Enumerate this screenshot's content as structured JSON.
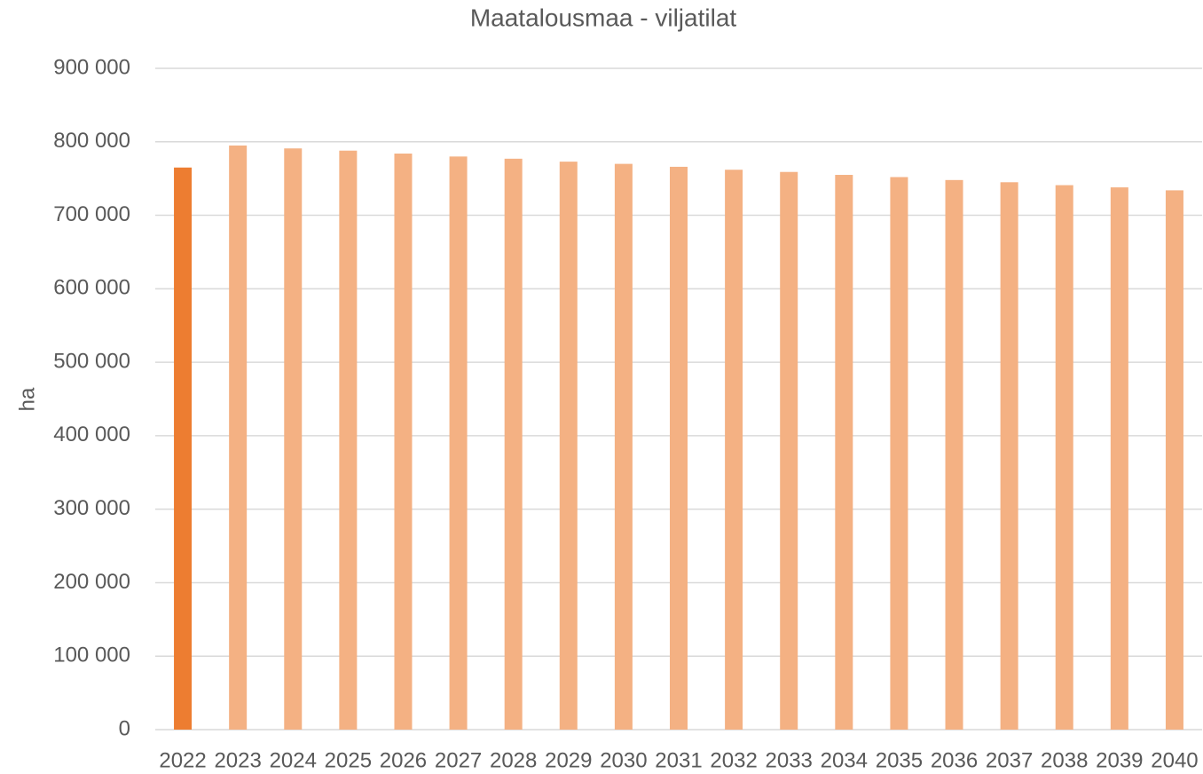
{
  "chart_data": {
    "type": "bar",
    "title": "Maatalousmaa - viljatilat",
    "y_label": "ha",
    "categories": [
      "2022",
      "2023",
      "2024",
      "2025",
      "2026",
      "2027",
      "2028",
      "2029",
      "2030",
      "2031",
      "2032",
      "2033",
      "2034",
      "2035",
      "2036",
      "2037",
      "2038",
      "2039",
      "2040"
    ],
    "values": [
      765000,
      795000,
      791000,
      788000,
      784000,
      780000,
      777000,
      773000,
      770000,
      766000,
      762000,
      759000,
      755000,
      752000,
      748000,
      745000,
      741000,
      738000,
      734000
    ],
    "colors": [
      "#ed7d31",
      "#f4b183",
      "#f4b183",
      "#f4b183",
      "#f4b183",
      "#f4b183",
      "#f4b183",
      "#f4b183",
      "#f4b183",
      "#f4b183",
      "#f4b183",
      "#f4b183",
      "#f4b183",
      "#f4b183",
      "#f4b183",
      "#f4b183",
      "#f4b183",
      "#f4b183",
      "#f4b183"
    ],
    "ylim": [
      0,
      900000
    ],
    "yticks": [
      0,
      {
        "value": 100000,
        "label": "100 000"
      },
      {
        "value": 200000,
        "label": "200 000"
      },
      {
        "value": 300000,
        "label": "300 000"
      },
      {
        "value": 400000,
        "label": "400 000"
      },
      {
        "value": 500000,
        "label": "500 000"
      },
      {
        "value": 600000,
        "label": "600 000"
      },
      {
        "value": 700000,
        "label": "700 000"
      },
      {
        "value": 800000,
        "label": "800 000"
      },
      {
        "value": 900000,
        "label": "900 000"
      }
    ],
    "grid": true
  }
}
